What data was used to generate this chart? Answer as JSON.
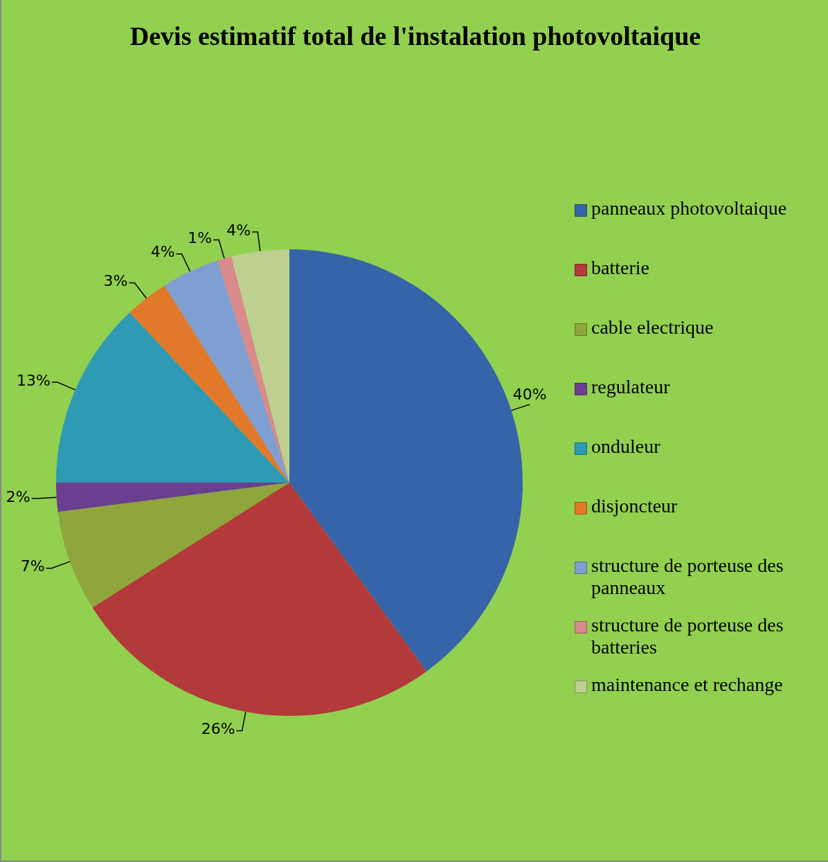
{
  "chart_data": {
    "type": "pie",
    "title": "Devis estimatif total de l'instalation photovoltaique",
    "categories": [
      "panneaux photovoltaique",
      "batterie",
      "cable electrique",
      "regulateur",
      "onduleur",
      "disjoncteur",
      "structure de porteuse des panneaux",
      "structure de porteuse des batteries",
      "maintenance et rechange"
    ],
    "values": [
      40,
      26,
      7,
      2,
      13,
      3,
      4,
      1,
      4
    ],
    "value_labels": [
      "40%",
      "26%",
      "7%",
      "2%",
      "13%",
      "3%",
      "4%",
      "1%",
      "4%"
    ],
    "colors": [
      "#3565a8",
      "#b23a3a",
      "#8ea63c",
      "#6b3f8f",
      "#2f9ab4",
      "#e2782a",
      "#7f9fd3",
      "#d98a8c",
      "#bdd08f"
    ],
    "legend": "right"
  }
}
